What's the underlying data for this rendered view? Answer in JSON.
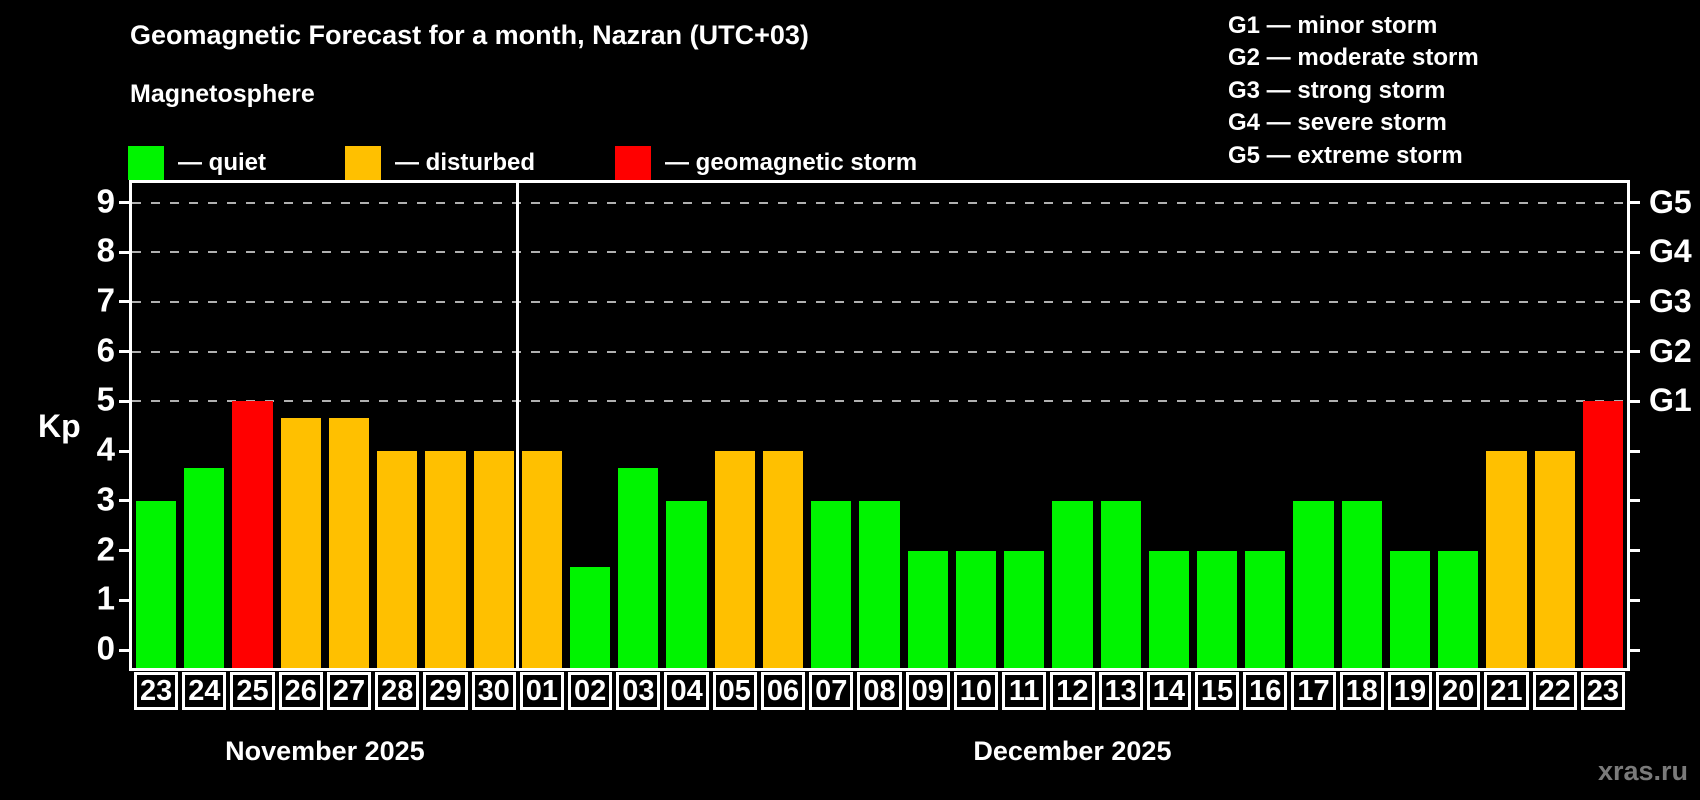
{
  "title": "Geomagnetic Forecast for a month, Nazran (UTC+03)",
  "subtitle": "Magnetosphere",
  "legend": {
    "items": [
      {
        "key": "quiet",
        "label": "— quiet",
        "color": "#00f400"
      },
      {
        "key": "disturbed",
        "label": "— disturbed",
        "color": "#ffc000"
      },
      {
        "key": "storm",
        "label": "— geomagnetic storm",
        "color": "#ff0000"
      }
    ]
  },
  "g_legend": [
    {
      "text": "G1 — minor storm"
    },
    {
      "text": "G2 — moderate storm"
    },
    {
      "text": "G3 — strong storm"
    },
    {
      "text": "G4 — severe storm"
    },
    {
      "text": "G5 — extreme storm"
    }
  ],
  "axes": {
    "y_label": "Kp",
    "y_ticks": [
      "0",
      "1",
      "2",
      "3",
      "4",
      "5",
      "6",
      "7",
      "8",
      "9"
    ],
    "right_labels": [
      {
        "kp": 5,
        "label": "G1"
      },
      {
        "kp": 6,
        "label": "G2"
      },
      {
        "kp": 7,
        "label": "G3"
      },
      {
        "kp": 8,
        "label": "G4"
      },
      {
        "kp": 9,
        "label": "G5"
      }
    ]
  },
  "months": [
    {
      "label": "November 2025",
      "days": [
        "23",
        "24",
        "25",
        "26",
        "27",
        "28",
        "29",
        "30"
      ]
    },
    {
      "label": "December 2025",
      "days": [
        "01",
        "02",
        "03",
        "04",
        "05",
        "06",
        "07",
        "08",
        "09",
        "10",
        "11",
        "12",
        "13",
        "14",
        "15",
        "16",
        "17",
        "18",
        "19",
        "20",
        "21",
        "22",
        "23"
      ]
    }
  ],
  "chart_data": {
    "type": "bar",
    "title": "Geomagnetic Forecast for a month, Nazran (UTC+03)",
    "xlabel": "",
    "ylabel": "Kp",
    "ylim": [
      0,
      9
    ],
    "grid_kp": [
      5,
      6,
      7,
      8,
      9
    ],
    "legend_position": "top-left",
    "x": [
      "23",
      "24",
      "25",
      "26",
      "27",
      "28",
      "29",
      "30",
      "01",
      "02",
      "03",
      "04",
      "05",
      "06",
      "07",
      "08",
      "09",
      "10",
      "11",
      "12",
      "13",
      "14",
      "15",
      "16",
      "17",
      "18",
      "19",
      "20",
      "21",
      "22",
      "23"
    ],
    "values": [
      3,
      3.67,
      5,
      4.67,
      4.67,
      4,
      4,
      4,
      4,
      1.67,
      3.67,
      3,
      4,
      4,
      3,
      3,
      2,
      2,
      2,
      3,
      3,
      2,
      2,
      2,
      3,
      3,
      2,
      2,
      4,
      4,
      5
    ],
    "categories": [
      "quiet",
      "quiet",
      "storm",
      "disturbed",
      "disturbed",
      "disturbed",
      "disturbed",
      "disturbed",
      "disturbed",
      "quiet",
      "quiet",
      "quiet",
      "disturbed",
      "disturbed",
      "quiet",
      "quiet",
      "quiet",
      "quiet",
      "quiet",
      "quiet",
      "quiet",
      "quiet",
      "quiet",
      "quiet",
      "quiet",
      "quiet",
      "quiet",
      "quiet",
      "disturbed",
      "disturbed",
      "storm"
    ]
  },
  "watermark": "xras.ru"
}
